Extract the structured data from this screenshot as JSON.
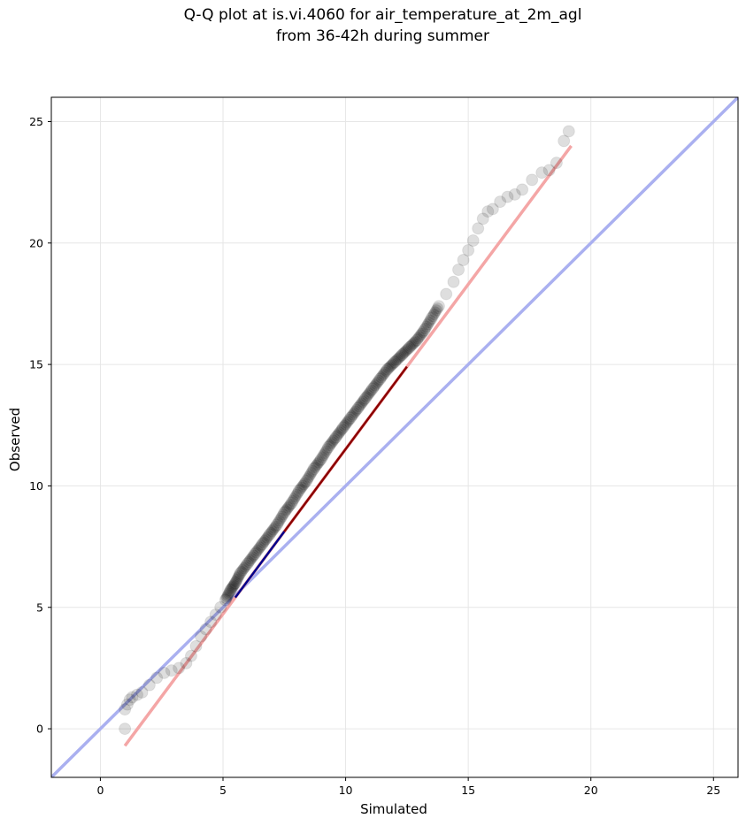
{
  "title_line1": "Q-Q plot at is.vi.4060 for air_temperature_at_2m_agl",
  "title_line2": "from 36-42h during summer",
  "chart_data": {
    "type": "scatter",
    "title": "Q-Q plot at is.vi.4060 for air_temperature_at_2m_agl from 36-42h during summer",
    "xlabel": "Simulated",
    "ylabel": "Observed",
    "xlim": [
      -2,
      26
    ],
    "ylim": [
      -2,
      26
    ],
    "xticks": [
      "0",
      "5",
      "10",
      "15",
      "20",
      "25"
    ],
    "yticks": [
      "0",
      "5",
      "10",
      "15",
      "20",
      "25"
    ],
    "grid": true,
    "colors": {
      "points": "#000000",
      "identity_line": "#aab0f0",
      "fit_line": "#f4a6a6",
      "mid_fit_segment": "#8b0000",
      "low_fit_segment": "#00008b"
    },
    "series": [
      {
        "x": [
          1.0,
          1.0,
          1.1,
          1.2,
          1.3,
          1.5,
          1.7,
          2.0,
          2.3,
          2.6,
          2.9,
          3.2,
          3.5,
          3.7,
          3.9,
          4.1,
          4.3,
          4.5,
          4.7,
          4.9,
          5.1,
          5.3,
          5.5,
          5.7,
          6.0,
          6.3,
          6.6,
          6.9,
          7.2,
          7.5,
          7.8,
          8.1,
          8.4,
          8.7,
          9.0,
          9.3,
          9.6,
          9.9,
          10.2,
          10.5,
          10.8,
          11.1,
          11.4,
          11.7,
          12.0,
          12.3,
          12.6,
          12.9,
          13.2,
          13.5,
          13.8,
          14.1,
          14.4,
          14.6,
          14.8,
          15.0,
          15.2,
          15.4,
          15.6,
          15.8,
          16.0,
          16.3,
          16.6,
          16.9,
          17.2,
          17.6,
          18.0,
          18.3,
          18.6,
          18.9,
          19.1
        ],
        "y": [
          0.0,
          0.8,
          1.0,
          1.2,
          1.3,
          1.4,
          1.5,
          1.8,
          2.1,
          2.3,
          2.4,
          2.5,
          2.7,
          3.0,
          3.4,
          3.8,
          4.1,
          4.4,
          4.7,
          5.0,
          5.3,
          5.7,
          6.0,
          6.4,
          6.8,
          7.2,
          7.6,
          8.0,
          8.4,
          8.9,
          9.3,
          9.8,
          10.2,
          10.7,
          11.1,
          11.6,
          12.0,
          12.4,
          12.8,
          13.2,
          13.6,
          14.0,
          14.4,
          14.8,
          15.1,
          15.4,
          15.7,
          16.0,
          16.4,
          16.9,
          17.4,
          17.9,
          18.4,
          18.9,
          19.3,
          19.7,
          20.1,
          20.6,
          21.0,
          21.3,
          21.4,
          21.7,
          21.9,
          22.0,
          22.2,
          22.6,
          22.9,
          23.0,
          23.3,
          24.2,
          24.6
        ]
      }
    ],
    "reference_lines": [
      {
        "name": "identity",
        "x": [
          -2,
          26
        ],
        "y": [
          -2,
          26
        ]
      },
      {
        "name": "fit",
        "x": [
          1.0,
          19.2
        ],
        "y": [
          -0.7,
          24.0
        ]
      }
    ]
  }
}
